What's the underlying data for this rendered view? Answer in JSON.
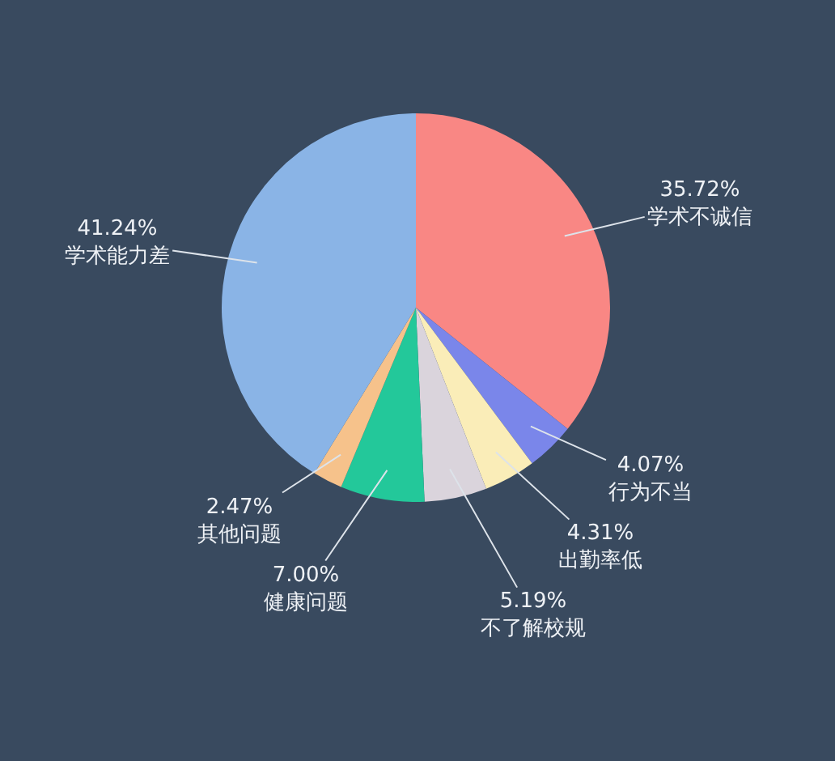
{
  "chart_data": {
    "type": "pie",
    "categories": [
      "学术不诚信",
      "行为不当",
      "出勤率低",
      "不了解校规",
      "健康问题",
      "其他问题",
      "学术能力差"
    ],
    "values": [
      35.72,
      4.07,
      4.31,
      5.19,
      7.0,
      2.47,
      41.24
    ],
    "value_labels": [
      "35.72%",
      "4.07%",
      "4.31%",
      "5.19%",
      "7.00%",
      "2.47%",
      "41.24%"
    ],
    "colors": [
      "#f98784",
      "#7a86ea",
      "#faedb8",
      "#dad4dc",
      "#23c89a",
      "#f6c28b",
      "#8ab4e6"
    ]
  }
}
